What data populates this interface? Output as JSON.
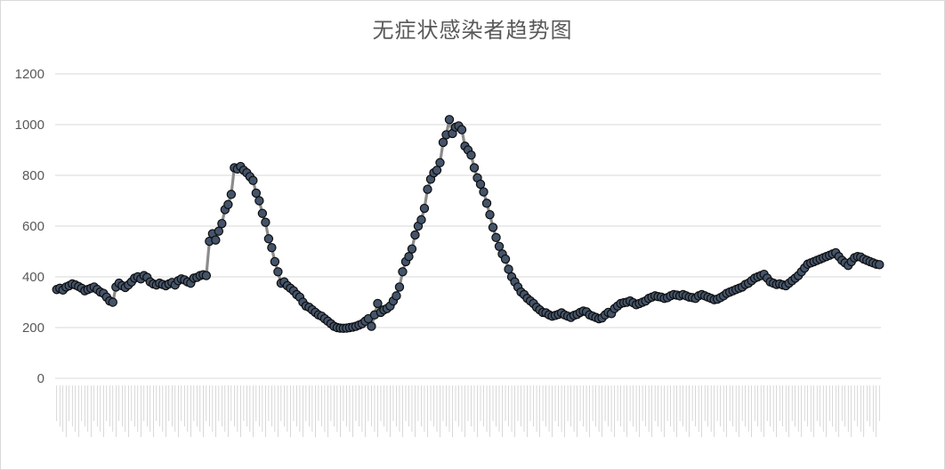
{
  "chart_data": {
    "type": "line",
    "title": "无症状感染者趋势图",
    "xlabel": "",
    "ylabel": "",
    "ylim": [
      0,
      1200
    ],
    "yticks": [
      0,
      200,
      400,
      600,
      800,
      1000,
      1200
    ],
    "grid": true,
    "legend": "none",
    "colors": {
      "line": "#8c8c8c",
      "marker_fill": "#44546a",
      "marker_edge": "#0d0d0d",
      "grid": "#d9d9d9",
      "text": "#595959"
    },
    "x_label_note": "x-axis date labels are rendered vertically and are not legible",
    "values": [
      350,
      355,
      348,
      360,
      365,
      372,
      368,
      362,
      355,
      345,
      350,
      355,
      360,
      350,
      340,
      335,
      320,
      305,
      300,
      360,
      375,
      365,
      358,
      368,
      380,
      395,
      400,
      392,
      405,
      398,
      380,
      372,
      368,
      375,
      370,
      365,
      372,
      378,
      368,
      385,
      392,
      388,
      380,
      375,
      395,
      398,
      405,
      408,
      405,
      540,
      570,
      545,
      580,
      610,
      665,
      685,
      725,
      830,
      825,
      835,
      820,
      810,
      795,
      780,
      730,
      700,
      650,
      615,
      550,
      515,
      460,
      420,
      375,
      380,
      365,
      355,
      345,
      330,
      320,
      300,
      285,
      280,
      270,
      260,
      250,
      245,
      235,
      225,
      215,
      205,
      200,
      198,
      197,
      198,
      200,
      202,
      205,
      210,
      215,
      225,
      235,
      205,
      250,
      295,
      260,
      270,
      275,
      285,
      305,
      325,
      360,
      420,
      460,
      480,
      510,
      565,
      600,
      625,
      670,
      745,
      785,
      810,
      820,
      850,
      930,
      960,
      1020,
      965,
      990,
      995,
      980,
      915,
      900,
      880,
      830,
      790,
      765,
      735,
      690,
      645,
      595,
      555,
      520,
      490,
      470,
      430,
      400,
      380,
      360,
      340,
      330,
      315,
      305,
      295,
      280,
      270,
      260,
      258,
      250,
      245,
      248,
      252,
      258,
      250,
      245,
      240,
      248,
      252,
      260,
      265,
      262,
      250,
      245,
      240,
      235,
      238,
      250,
      260,
      255,
      275,
      285,
      295,
      298,
      300,
      305,
      298,
      290,
      295,
      300,
      305,
      315,
      320,
      325,
      322,
      320,
      315,
      318,
      325,
      330,
      328,
      325,
      330,
      325,
      320,
      318,
      315,
      325,
      330,
      325,
      320,
      315,
      310,
      312,
      318,
      325,
      335,
      340,
      345,
      350,
      355,
      360,
      370,
      375,
      385,
      395,
      400,
      405,
      410,
      395,
      380,
      375,
      370,
      372,
      368,
      365,
      375,
      385,
      395,
      405,
      420,
      435,
      450,
      455,
      460,
      465,
      470,
      475,
      480,
      485,
      490,
      495,
      480,
      465,
      455,
      445,
      460,
      475,
      480,
      478,
      470,
      465,
      460,
      455,
      450,
      448
    ]
  }
}
